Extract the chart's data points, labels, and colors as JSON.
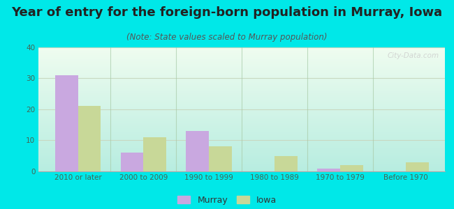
{
  "title": "Year of entry for the foreign-born population in Murray, Iowa",
  "subtitle": "(Note: State values scaled to Murray population)",
  "categories": [
    "2010 or later",
    "2000 to 2009",
    "1990 to 1999",
    "1980 to 1989",
    "1970 to 1979",
    "Before 1970"
  ],
  "murray_values": [
    31,
    6,
    13,
    0,
    1,
    0
  ],
  "iowa_values": [
    21,
    11,
    8,
    5,
    2,
    3
  ],
  "murray_color": "#c9a8e0",
  "iowa_color": "#c8d898",
  "bar_width": 0.35,
  "ylim": [
    0,
    40
  ],
  "yticks": [
    0,
    10,
    20,
    30,
    40
  ],
  "background_outer": "#00e8e8",
  "bg_top_left": "#f0faf0",
  "bg_top_right": "#e0f5e0",
  "bg_bottom": "#b8ece0",
  "grid_color": "#c8d8c0",
  "title_fontsize": 13,
  "subtitle_fontsize": 8.5,
  "tick_fontsize": 7.5,
  "legend_fontsize": 9,
  "watermark_text": "City-Data.com"
}
